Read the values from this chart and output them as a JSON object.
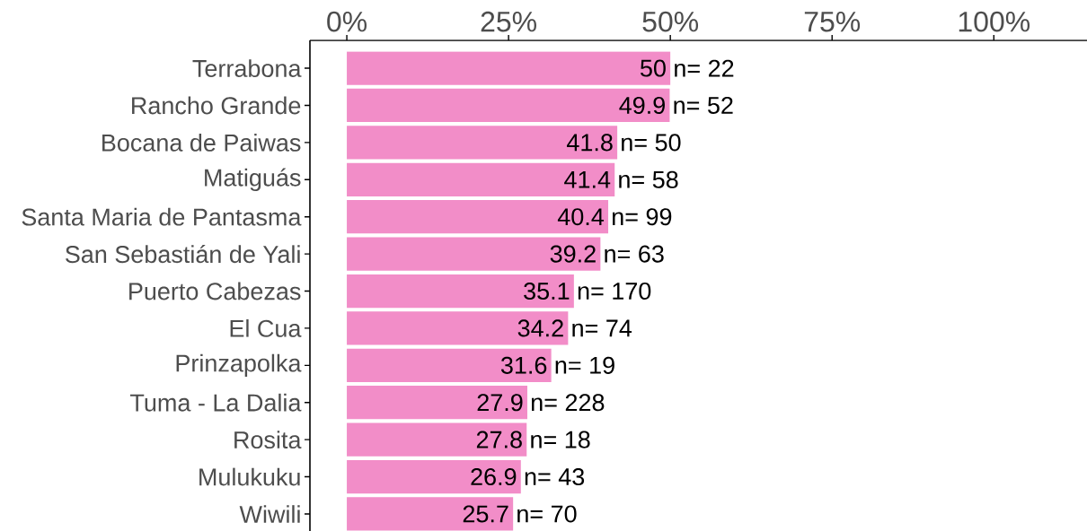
{
  "chart_data": {
    "type": "bar",
    "orientation": "horizontal",
    "categories": [
      "Terrabona",
      "Rancho Grande",
      "Bocana de Paiwas",
      "Matiguás",
      "Santa Maria de Pantasma",
      "San Sebastián de Yali",
      "Puerto Cabezas",
      "El Cua",
      "Prinzapolka",
      "Tuma - La Dalia",
      "Rosita",
      "Mulukuku",
      "Wiwili"
    ],
    "values": [
      50,
      49.9,
      41.8,
      41.4,
      40.4,
      39.2,
      35.1,
      34.2,
      31.6,
      27.9,
      27.8,
      26.9,
      25.7
    ],
    "color": "#f28dc8",
    "data_labels": true,
    "grid": false,
    "xlim": [
      -5.7,
      114.4
    ],
    "xticks": [
      {
        "value": 0,
        "label": "0%"
      },
      {
        "value": 25,
        "label": "25%"
      },
      {
        "value": 50,
        "label": "50%"
      },
      {
        "value": 75,
        "label": "75%"
      },
      {
        "value": 100,
        "label": "100%"
      }
    ],
    "annotations": [
      {
        "text": "n= 22",
        "x": 50,
        "y": "Terrabona"
      },
      {
        "text": "n= 52",
        "x": 49.9,
        "y": "Rancho Grande"
      },
      {
        "text": "n= 50",
        "x": 41.8,
        "y": "Bocana de Paiwas"
      },
      {
        "text": "n= 58",
        "x": 41.4,
        "y": "Matiguás"
      },
      {
        "text": "n= 99",
        "x": 40.4,
        "y": "Santa Maria de Pantasma"
      },
      {
        "text": "n= 63",
        "x": 39.2,
        "y": "San Sebastián de Yali"
      },
      {
        "text": "n= 170",
        "x": 35.1,
        "y": "Puerto Cabezas"
      },
      {
        "text": "n= 74",
        "x": 34.2,
        "y": "El Cua"
      },
      {
        "text": "n= 19",
        "x": 31.6,
        "y": "Prinzapolka"
      },
      {
        "text": "n= 228",
        "x": 27.9,
        "y": "Tuma - La Dalia"
      },
      {
        "text": "n= 18",
        "x": 27.8,
        "y": "Rosita"
      },
      {
        "text": "n= 43",
        "x": 26.9,
        "y": "Mulukuku"
      },
      {
        "text": "n= 70",
        "x": 25.7,
        "y": "Wiwili"
      }
    ]
  }
}
